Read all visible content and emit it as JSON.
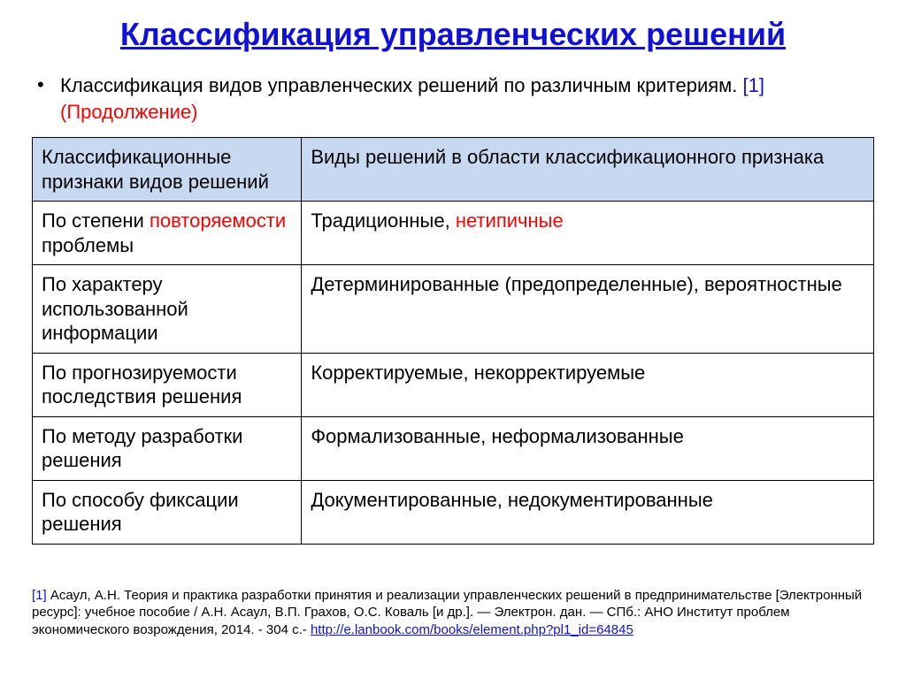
{
  "colors": {
    "title": "#1010d8",
    "accent_red": "#ff0000",
    "link": "#1010d8",
    "header_bg": "#c6d9f1",
    "text": "#000000"
  },
  "title": "Классификация управленческих решений",
  "bullet": {
    "line1": "Классификация видов управленческих решений по различным критериям. ",
    "ref": "[1]",
    "line2": "(Продолжение)"
  },
  "table": {
    "headers": {
      "col1": "Классификационные признаки видов решений",
      "col2": "Виды решений в области  классификационного признака"
    },
    "rows": [
      {
        "c1_pre": "По степени ",
        "c1_red": "повторяемости",
        "c1_post": " проблемы",
        "c2_pre": "Традиционные, ",
        "c2_red": "нетипичные",
        "c2_post": ""
      },
      {
        "c1_pre": "По характеру использованной информации",
        "c1_red": "",
        "c1_post": "",
        "c2_pre": "Детерминированные (предопределенные), вероятностные",
        "c2_red": "",
        "c2_post": ""
      },
      {
        "c1_pre": "По прогнозируемости последствия решения",
        "c1_red": "",
        "c1_post": "",
        "c2_pre": "Корректируемые, некорректируемые",
        "c2_red": "",
        "c2_post": ""
      },
      {
        "c1_pre": "По методу разработки решения",
        "c1_red": "",
        "c1_post": "",
        "c2_pre": "Формализованные, неформализованные",
        "c2_red": "",
        "c2_post": ""
      },
      {
        "c1_pre": "По способу фиксации решения",
        "c1_red": "",
        "c1_post": "",
        "c2_pre": "Документированные, недокументированные",
        "c2_red": "",
        "c2_post": ""
      }
    ]
  },
  "footnote": {
    "ref": "[1]",
    "text_before_link": " Асаул, А.Н. Теория и практика разработки принятия и реализации управленческих решений в предпринимательстве [Электронный ресурс]: учебное пособие / А.Н. Асаул, В.П. Грахов, О.С. Коваль [и др.]. — Электрон. дан. — СПб.: АНО Институт проблем экономического возрождения, 2014. - 304 с.- ",
    "link": "http://e.lanbook.com/books/element.php?pl1_id=64845"
  }
}
